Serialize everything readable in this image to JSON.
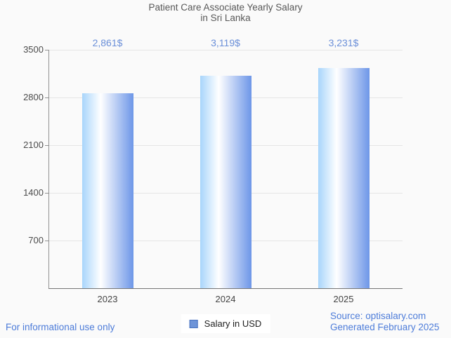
{
  "chart_data": {
    "type": "bar",
    "title_lines": [
      "Patient Care Associate Yearly Salary",
      "in Sri Lanka"
    ],
    "categories": [
      "2023",
      "2024",
      "2025"
    ],
    "values": [
      2861,
      3119,
      3231
    ],
    "value_labels": [
      "2,861$",
      "3,119$",
      "3,231$"
    ],
    "series_name": "Salary in USD",
    "y_ticks": [
      3500,
      2800,
      2100,
      1400,
      700
    ],
    "ylim": [
      0,
      3500
    ],
    "grid": true,
    "legend_position": "bottom",
    "colors": {
      "background": "#fafafa",
      "bar_gradient": [
        "#a8d5fb",
        "#ffffff",
        "#6d96e8"
      ],
      "annotation": "#6a8fd8",
      "gridline": "#e5e5e5",
      "axis": "#929292",
      "baseline": "#757575",
      "footer_text": "#4d7cd9",
      "legend_swatch_fill": "#6e94d8",
      "legend_swatch_border": "#4872bf"
    }
  },
  "legend": {
    "label": "Salary in USD"
  },
  "footer": {
    "disclaimer": "For informational use only",
    "source": "Source: optisalary.com",
    "generated": "Generated February 2025"
  }
}
